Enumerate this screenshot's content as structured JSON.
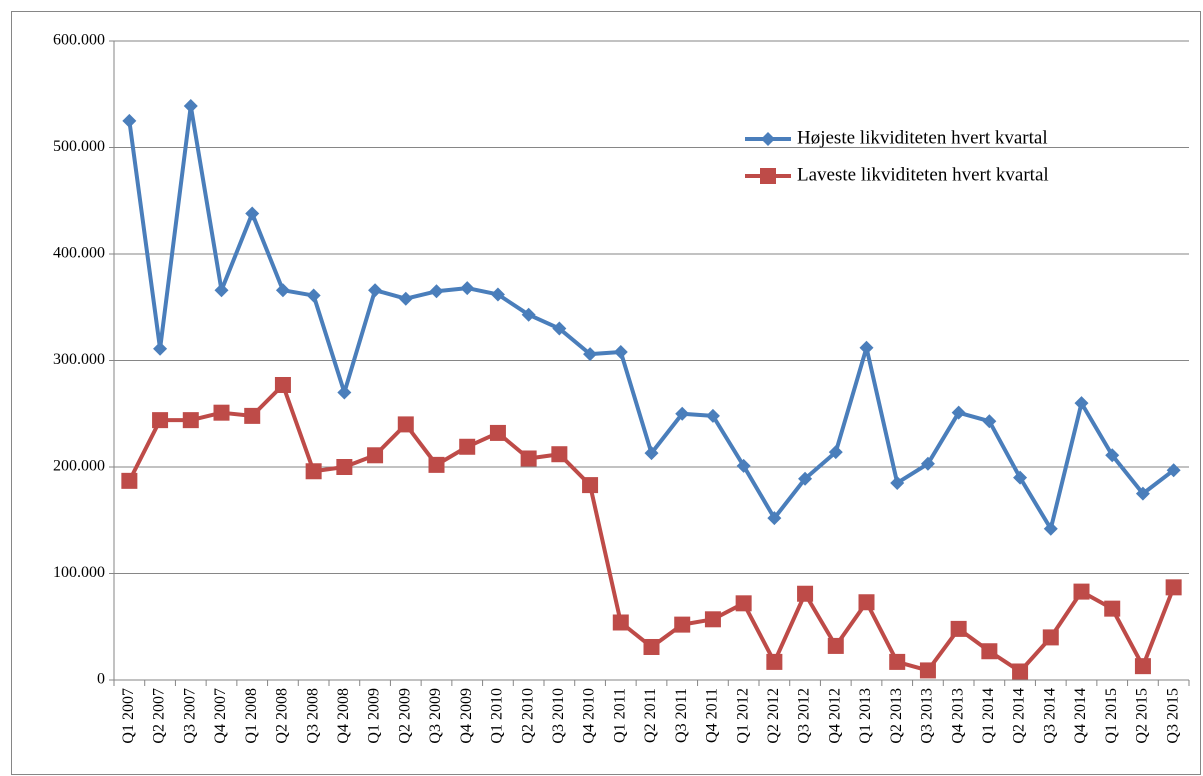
{
  "chart_data": {
    "type": "line",
    "categories": [
      "Q1 2007",
      "Q2 2007",
      "Q3 2007",
      "Q4 2007",
      "Q1 2008",
      "Q2 2008",
      "Q3 2008",
      "Q4 2008",
      "Q1 2009",
      "Q2 2009",
      "Q3 2009",
      "Q4 2009",
      "Q1 2010",
      "Q2 2010",
      "Q3 2010",
      "Q4 2010",
      "Q1 2011",
      "Q2 2011",
      "Q3 2011",
      "Q4 2011",
      "Q1 2012",
      "Q2 2012",
      "Q3 2012",
      "Q4 2012",
      "Q1 2013",
      "Q2 2013",
      "Q3 2013",
      "Q4 2013",
      "Q1 2014",
      "Q2 2014",
      "Q3 2014",
      "Q4 2014",
      "Q1 2015",
      "Q2 2015",
      "Q3 2015"
    ],
    "series": [
      {
        "name": "Højeste likviditeten hvert kvartal",
        "color": "#4a7ebb",
        "marker": "diamond",
        "values": [
          525000,
          311000,
          539000,
          366000,
          438000,
          366000,
          361000,
          270000,
          366000,
          358000,
          365000,
          368000,
          362000,
          343000,
          330000,
          306000,
          308000,
          213000,
          250000,
          248000,
          201000,
          152000,
          189000,
          214000,
          312000,
          185000,
          203000,
          251000,
          243000,
          190000,
          142000,
          260000,
          211000,
          175000,
          197000
        ]
      },
      {
        "name": "Laveste likviditeten hvert kvartal",
        "color": "#be4b48",
        "marker": "square",
        "values": [
          187000,
          244000,
          244000,
          251000,
          248000,
          277000,
          196000,
          200000,
          211000,
          240000,
          202000,
          219000,
          232000,
          208000,
          212000,
          183000,
          54000,
          31000,
          52000,
          57000,
          72000,
          17000,
          81000,
          32000,
          73000,
          17000,
          9000,
          48000,
          27000,
          8000,
          40000,
          83000,
          67000,
          13000,
          87000
        ]
      }
    ],
    "ylim": [
      0,
      600000
    ],
    "yticks": [
      0,
      {
        "value": 100000,
        "label": "100.000"
      },
      {
        "value": 200000,
        "label": "200.000"
      },
      {
        "value": 300000,
        "label": "300.000"
      },
      {
        "value": 400000,
        "label": "400.000"
      },
      {
        "value": 500000,
        "label": "500.000"
      },
      {
        "value": 600000,
        "label": "600.000"
      }
    ],
    "grid": true,
    "legend": "upper right"
  }
}
